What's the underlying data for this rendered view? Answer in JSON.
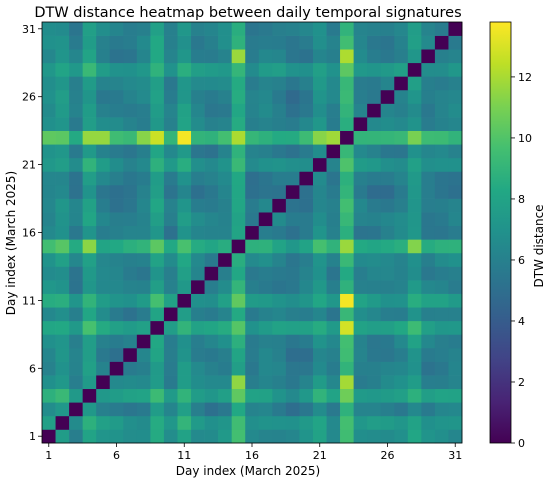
{
  "chart_data": {
    "type": "heatmap",
    "title": "DTW distance heatmap between daily temporal signatures",
    "xlabel": "Day index (March 2025)",
    "ylabel": "Day index (March 2025)",
    "colorbar_label": "DTW distance",
    "colormap": "viridis",
    "days": [
      1,
      2,
      3,
      4,
      5,
      6,
      7,
      8,
      9,
      10,
      11,
      12,
      13,
      14,
      15,
      16,
      17,
      18,
      19,
      20,
      21,
      22,
      23,
      24,
      25,
      26,
      27,
      28,
      29,
      30,
      31
    ],
    "x_ticks": [
      "1",
      "6",
      "11",
      "16",
      "21",
      "26",
      "31"
    ],
    "y_ticks": [
      "1",
      "6",
      "11",
      "16",
      "21",
      "26",
      "31"
    ],
    "colorbar_ticks": [
      "0",
      "2",
      "4",
      "6",
      "8",
      "10",
      "12"
    ],
    "vmin": 0,
    "vmax": 13.8,
    "origin": "lower",
    "profile": [
      7.4,
      8.2,
      5.6,
      9.2,
      6.4,
      5.8,
      5.6,
      6.2,
      9.6,
      6.0,
      8.8,
      6.1,
      5.7,
      6.5,
      10.9,
      5.6,
      6.2,
      5.8,
      4.9,
      5.6,
      7.7,
      5.8,
      12.2,
      6.3,
      5.9,
      5.9,
      6.3,
      8.4,
      5.9,
      6.0,
      6.1
    ],
    "overrides": [
      {
        "row": 11,
        "col": 23,
        "value": 13.6
      },
      {
        "row": 23,
        "col": 11,
        "value": 13.6
      },
      {
        "row": 9,
        "col": 23,
        "value": 12.9
      },
      {
        "row": 23,
        "col": 9,
        "value": 12.7
      },
      {
        "row": 23,
        "col": 4,
        "value": 11.6
      },
      {
        "row": 23,
        "col": 5,
        "value": 11.6
      },
      {
        "row": 23,
        "col": 8,
        "value": 11.3
      },
      {
        "row": 23,
        "col": 21,
        "value": 11.3
      },
      {
        "row": 23,
        "col": 22,
        "value": 11.8
      },
      {
        "row": 23,
        "col": 28,
        "value": 11.0
      },
      {
        "row": 15,
        "col": 4,
        "value": 11.4
      },
      {
        "row": 15,
        "col": 28,
        "value": 11.2
      },
      {
        "row": 5,
        "col": 15,
        "value": 11.5
      },
      {
        "row": 29,
        "col": 15,
        "value": 11.7
      },
      {
        "row": 29,
        "col": 23,
        "value": 12.1
      },
      {
        "row": 5,
        "col": 23,
        "value": 11.9
      }
    ]
  }
}
